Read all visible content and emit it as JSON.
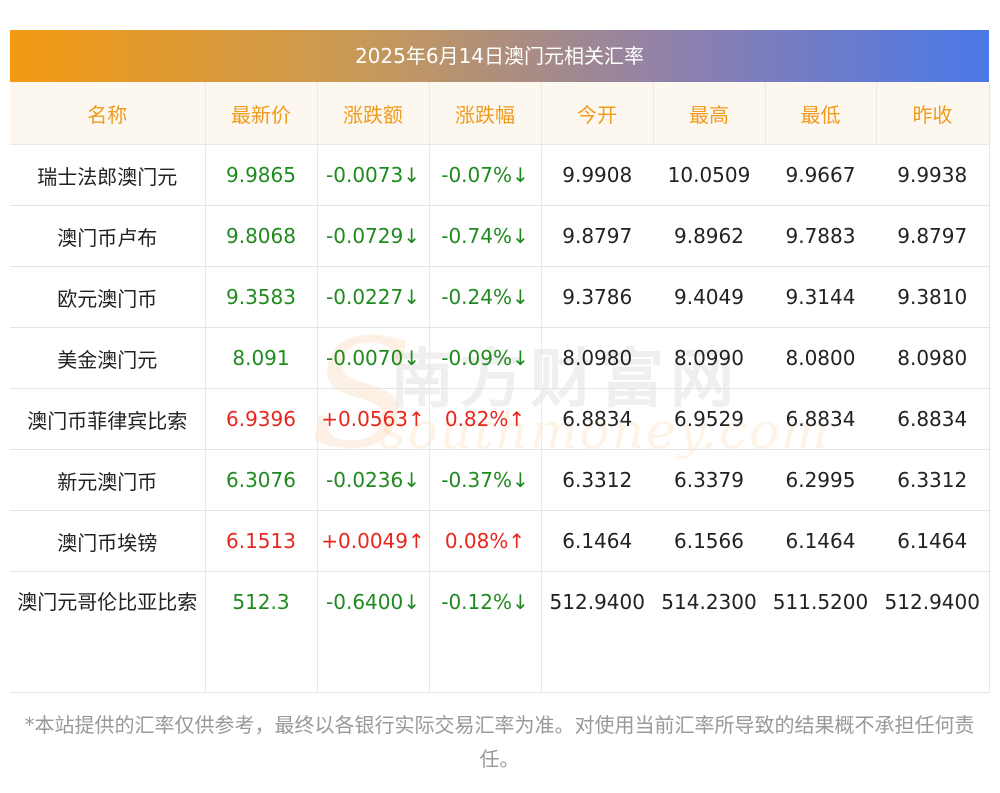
{
  "title": "2025年6月14日澳门元相关汇率",
  "headers": [
    "名称",
    "最新价",
    "涨跌额",
    "涨跌幅",
    "今开",
    "最高",
    "最低",
    "昨收"
  ],
  "rows": [
    {
      "name": "瑞士法郎澳门元",
      "latest": "9.9865",
      "change": "-0.0073↓",
      "pct": "-0.07%↓",
      "open": "9.9908",
      "high": "10.0509",
      "low": "9.9667",
      "prev": "9.9938",
      "dir": "down"
    },
    {
      "name": "澳门币卢布",
      "latest": "9.8068",
      "change": "-0.0729↓",
      "pct": "-0.74%↓",
      "open": "9.8797",
      "high": "9.8962",
      "low": "9.7883",
      "prev": "9.8797",
      "dir": "down"
    },
    {
      "name": "欧元澳门币",
      "latest": "9.3583",
      "change": "-0.0227↓",
      "pct": "-0.24%↓",
      "open": "9.3786",
      "high": "9.4049",
      "low": "9.3144",
      "prev": "9.3810",
      "dir": "down"
    },
    {
      "name": "美金澳门元",
      "latest": "8.091",
      "change": "-0.0070↓",
      "pct": "-0.09%↓",
      "open": "8.0980",
      "high": "8.0990",
      "low": "8.0800",
      "prev": "8.0980",
      "dir": "down"
    },
    {
      "name": "澳门币菲律宾比索",
      "latest": "6.9396",
      "change": "+0.0563↑",
      "pct": "0.82%↑",
      "open": "6.8834",
      "high": "6.9529",
      "low": "6.8834",
      "prev": "6.8834",
      "dir": "up"
    },
    {
      "name": "新元澳门币",
      "latest": "6.3076",
      "change": "-0.0236↓",
      "pct": "-0.37%↓",
      "open": "6.3312",
      "high": "6.3379",
      "low": "6.2995",
      "prev": "6.3312",
      "dir": "down"
    },
    {
      "name": "澳门币埃镑",
      "latest": "6.1513",
      "change": "+0.0049↑",
      "pct": "0.08%↑",
      "open": "6.1464",
      "high": "6.1566",
      "low": "6.1464",
      "prev": "6.1464",
      "dir": "up"
    },
    {
      "name": "澳门元哥伦比亚比索",
      "latest": "512.3",
      "change": "-0.6400↓",
      "pct": "-0.12%↓",
      "open": "512.9400",
      "high": "514.2300",
      "low": "511.5200",
      "prev": "512.9400",
      "dir": "down"
    }
  ],
  "watermark": {
    "cn": "南方财富网",
    "en": "southmoney.com"
  },
  "note": "*本站提供的汇率仅供参考，最终以各银行实际交易汇率为准。对使用当前汇率所导致的结果概不承担任何责任。",
  "colors": {
    "up": "#e8261e",
    "down": "#1f8a1f",
    "header_text": "#f09a1e"
  }
}
